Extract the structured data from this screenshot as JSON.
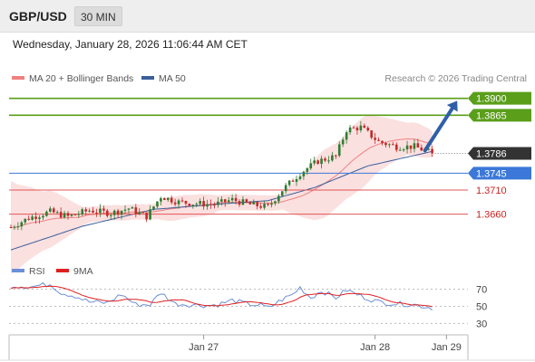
{
  "header": {
    "symbol": "GBP/USD",
    "timeframe": "30 MIN"
  },
  "datetime": "Wednesday, January 28, 2026 11:06:44 AM CET",
  "legend": {
    "ma20": "MA 20 + Bollinger Bands",
    "ma50": "MA 50",
    "rsi": "RSI",
    "ma9": "9MA"
  },
  "credit": "Research © 2026 Trading Central",
  "colors": {
    "resistance": "#5a9e1a",
    "pivot": "#3b78d8",
    "support": "#e05555",
    "candle_up": "#2e7d32",
    "candle_down": "#c62828",
    "ma50": "#3a5f9a",
    "ma20": "#f08080",
    "bollinger": "#f9d6d6",
    "rsi": "#6b8fd8",
    "ma9": "#e02020",
    "arrow": "#2f5fa8",
    "price_tag": "#333333"
  },
  "chart_data": [
    {
      "type": "candlestick",
      "y_range": [
        1.3575,
        1.392
      ],
      "x_range": [
        0,
        128
      ],
      "x_ticks": [
        {
          "label": "Jan 27",
          "x": 54
        },
        {
          "label": "Jan 28",
          "x": 102
        },
        {
          "label": "Jan 29",
          "x": 122
        }
      ],
      "levels": [
        {
          "label": "1.3900",
          "value": 1.39,
          "kind": "resistance"
        },
        {
          "label": "1.3865",
          "value": 1.3865,
          "kind": "resistance"
        },
        {
          "label": "1.3745",
          "value": 1.3745,
          "kind": "pivot"
        },
        {
          "label": "1.3710",
          "value": 1.371,
          "kind": "support"
        },
        {
          "label": "1.3660",
          "value": 1.366,
          "kind": "support"
        }
      ],
      "last_price": {
        "label": "1.3786",
        "value": 1.3786
      },
      "forecast_arrow": {
        "from": [
          116,
          1.3792
        ],
        "to": [
          125,
          1.3895
        ]
      },
      "anchors": [
        [
          0,
          1.3633
        ],
        [
          5,
          1.3652
        ],
        [
          11,
          1.3665
        ],
        [
          16,
          1.3655
        ],
        [
          22,
          1.3668
        ],
        [
          28,
          1.3662
        ],
        [
          33,
          1.3672
        ],
        [
          38,
          1.3655
        ],
        [
          42,
          1.3697
        ],
        [
          47,
          1.3685
        ],
        [
          52,
          1.3682
        ],
        [
          57,
          1.368
        ],
        [
          62,
          1.369
        ],
        [
          67,
          1.368
        ],
        [
          72,
          1.3675
        ],
        [
          76,
          1.371
        ],
        [
          81,
          1.3745
        ],
        [
          86,
          1.377
        ],
        [
          91,
          1.378
        ],
        [
          94,
          1.3835
        ],
        [
          98,
          1.384
        ],
        [
          103,
          1.381
        ],
        [
          108,
          1.38
        ],
        [
          113,
          1.38
        ],
        [
          118,
          1.3786
        ]
      ],
      "ma50_anchors": [
        [
          0,
          1.3586
        ],
        [
          20,
          1.3635
        ],
        [
          40,
          1.367
        ],
        [
          60,
          1.3682
        ],
        [
          72,
          1.3688
        ],
        [
          85,
          1.3715
        ],
        [
          100,
          1.376
        ],
        [
          118,
          1.379
        ]
      ]
    },
    {
      "type": "line",
      "y_range": [
        22,
        80
      ],
      "y_ticks": [
        70,
        50,
        30
      ],
      "rsi_anchors": [
        [
          0,
          74
        ],
        [
          6,
          73
        ],
        [
          11,
          76
        ],
        [
          14,
          66
        ],
        [
          18,
          62
        ],
        [
          22,
          55
        ],
        [
          27,
          54
        ],
        [
          31,
          64
        ],
        [
          35,
          52
        ],
        [
          39,
          52
        ],
        [
          42,
          66
        ],
        [
          46,
          53
        ],
        [
          50,
          52
        ],
        [
          55,
          51
        ],
        [
          58,
          52
        ],
        [
          62,
          57
        ],
        [
          66,
          53
        ],
        [
          70,
          51
        ],
        [
          72,
          48
        ],
        [
          76,
          58
        ],
        [
          79,
          64
        ],
        [
          81,
          72
        ],
        [
          84,
          60
        ],
        [
          87,
          68
        ],
        [
          91,
          60
        ],
        [
          94,
          69
        ],
        [
          98,
          62
        ],
        [
          103,
          55
        ],
        [
          108,
          53
        ],
        [
          113,
          52
        ],
        [
          118,
          48
        ]
      ]
    }
  ]
}
